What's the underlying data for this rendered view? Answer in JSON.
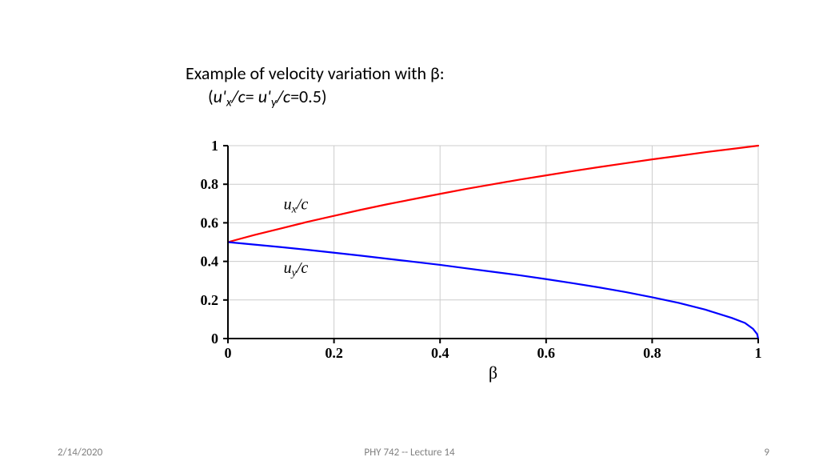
{
  "title_line1_prefix": "Example of  velocity variation with ",
  "title_line1_symbol": "β",
  "title_line1_suffix": ":",
  "title_line2_open": "(",
  "title_line2_u1": "u'",
  "title_line2_sub1": "x",
  "title_line2_mid1": "/c",
  "title_line2_eq": "= ",
  "title_line2_u2": "u'",
  "title_line2_sub2": "y",
  "title_line2_mid2": "/c",
  "title_line2_val": "=0.5)",
  "chart": {
    "type": "line",
    "xlim": [
      0,
      1
    ],
    "ylim": [
      0,
      1
    ],
    "xticks": [
      0,
      0.2,
      0.4,
      0.6,
      0.8,
      1
    ],
    "yticks": [
      0,
      0.2,
      0.4,
      0.6,
      0.8,
      1
    ],
    "xlabel": "β",
    "grid_color": "#cccccc",
    "axis_color": "#000000",
    "background_color": "#ffffff",
    "tick_font_size": 18,
    "series": [
      {
        "name": "ux",
        "label_prefix": "u",
        "label_sub": "x",
        "label_suffix": "/c",
        "color": "#ff0000",
        "line_width": 2.2,
        "x": [
          0.0,
          0.05,
          0.1,
          0.15,
          0.2,
          0.25,
          0.3,
          0.35,
          0.4,
          0.45,
          0.5,
          0.55,
          0.6,
          0.65,
          0.7,
          0.75,
          0.8,
          0.85,
          0.9,
          0.95,
          1.0
        ],
        "y": [
          0.5,
          0.537,
          0.571,
          0.605,
          0.636,
          0.667,
          0.696,
          0.723,
          0.75,
          0.776,
          0.8,
          0.824,
          0.846,
          0.868,
          0.889,
          0.909,
          0.929,
          0.947,
          0.966,
          0.983,
          1.0
        ],
        "label_pos": {
          "x": 0.105,
          "y": 0.67
        }
      },
      {
        "name": "uy",
        "label_prefix": "u",
        "label_sub": "y",
        "label_suffix": "/c",
        "color": "#0000ff",
        "line_width": 2.2,
        "x": [
          0.0,
          0.05,
          0.1,
          0.15,
          0.2,
          0.25,
          0.3,
          0.35,
          0.4,
          0.45,
          0.5,
          0.55,
          0.6,
          0.65,
          0.7,
          0.75,
          0.8,
          0.85,
          0.9,
          0.95,
          0.975,
          0.99,
          0.998,
          1.0
        ],
        "y": [
          0.5,
          0.487,
          0.474,
          0.46,
          0.445,
          0.43,
          0.414,
          0.398,
          0.382,
          0.364,
          0.346,
          0.328,
          0.308,
          0.287,
          0.265,
          0.241,
          0.214,
          0.185,
          0.15,
          0.107,
          0.081,
          0.051,
          0.023,
          0.0
        ],
        "label_pos": {
          "x": 0.105,
          "y": 0.34
        }
      }
    ]
  },
  "footer": {
    "date": "2/14/2020",
    "center": "PHY 742 -- Lecture 14",
    "page": "9"
  }
}
